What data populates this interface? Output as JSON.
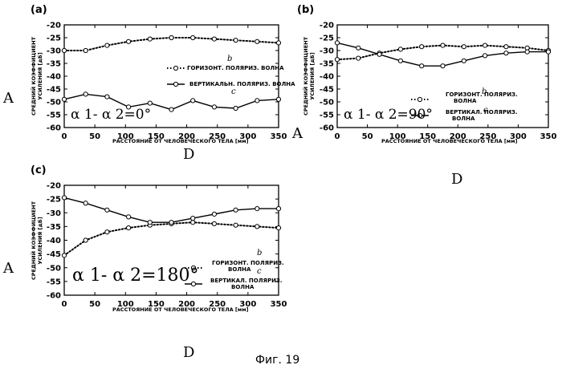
{
  "figure_caption": "Фиг. 19",
  "chart_data": [
    {
      "type": "line",
      "panel_label": "(a)",
      "annotation": "α 1- α 2=0°",
      "xlabel": "РАССТОЯНИЕ ОТ ЧЕЛОВЕЧЕСКОГО ТЕЛА [мм]",
      "ylabel": "СРЕДНИЙ КОЭФФИЦИЕНТ УСИЛЕНИЯ [дБ]",
      "xlim": [
        0,
        350
      ],
      "ylim": [
        -60,
        -20
      ],
      "x_ticks": [
        "0",
        "50",
        "100",
        "150",
        "200",
        "250",
        "300",
        "350"
      ],
      "y_ticks": [
        "-20",
        "-25",
        "-30",
        "-35",
        "-40",
        "-45",
        "-50",
        "-55",
        "-60"
      ],
      "x": [
        0,
        35,
        70,
        105,
        140,
        175,
        210,
        245,
        280,
        315,
        350
      ],
      "series": [
        {
          "name": "ГОРИЗОНТ. ПОЛЯРИЗ. ВОЛНА",
          "style": "dotted",
          "values": [
            -30,
            -30,
            -28,
            -26.5,
            -25.5,
            -25,
            -25,
            -25.5,
            -26,
            -26.5,
            -27
          ]
        },
        {
          "name": "ВЕРТИКАЛЬН. ПОЛЯРИЗ. ВОЛНА",
          "style": "solid",
          "values": [
            -49,
            -47,
            -48,
            -52,
            -50.5,
            -53,
            -49.5,
            -52,
            -52.5,
            -49.5,
            -49
          ]
        }
      ],
      "handwritten": {
        "A": "A",
        "D": "D",
        "b": "b",
        "c": "c"
      }
    },
    {
      "type": "line",
      "panel_label": "(b)",
      "annotation": "α 1- α 2=90°",
      "xlabel": "РАССТОЯНИЕ ОТ ЧЕЛОВЕЧЕСКОГО ТЕЛА [мм]",
      "ylabel": "СРЕДНИЙ КОЭФФИЦИЕНТ УСИЛЕНИЯ [дБ]",
      "xlim": [
        0,
        350
      ],
      "ylim": [
        -60,
        -20
      ],
      "x_ticks": [
        "0",
        "50",
        "100",
        "150",
        "200",
        "250",
        "300",
        "350"
      ],
      "y_ticks": [
        "-20",
        "-25",
        "-30",
        "-35",
        "-40",
        "-45",
        "-50",
        "-55",
        "-60"
      ],
      "x": [
        0,
        35,
        70,
        105,
        140,
        175,
        210,
        245,
        280,
        315,
        350
      ],
      "series": [
        {
          "name": "ГОРИЗОНТ. ПОЛЯРИЗ. ВОЛНА",
          "style": "dotted",
          "values": [
            -33.5,
            -33,
            -31,
            -29.5,
            -28.5,
            -28,
            -28.5,
            -28,
            -28.5,
            -29,
            -30
          ]
        },
        {
          "name": "ВЕРТИКАЛ. ПОЛЯРИЗ. ВОЛНА",
          "style": "solid",
          "values": [
            -27,
            -29,
            -31.5,
            -34,
            -36,
            -36,
            -34,
            -32,
            -31,
            -30.5,
            -30.5
          ]
        }
      ],
      "handwritten": {
        "A": "A",
        "D": "D",
        "b": "b",
        "c": "c"
      }
    },
    {
      "type": "line",
      "panel_label": "(c)",
      "annotation": "α 1- α 2=180°",
      "xlabel": "РАССТОЯНИЕ ОТ ЧЕЛОВЕЧЕСКОГО ТЕЛА [мм]",
      "ylabel": "СРЕДНИЙ КОЭФФИЦИЕНТ УСИЛЕНИЯ [дБ]",
      "xlim": [
        0,
        350
      ],
      "ylim": [
        -60,
        -20
      ],
      "x_ticks": [
        "0",
        "50",
        "100",
        "150",
        "200",
        "250",
        "300",
        "350"
      ],
      "y_ticks": [
        "-20",
        "-25",
        "-30",
        "-35",
        "-40",
        "-45",
        "-50",
        "-55",
        "-60"
      ],
      "x": [
        0,
        35,
        70,
        105,
        140,
        175,
        210,
        245,
        280,
        315,
        350
      ],
      "series": [
        {
          "name": "ГОРИЗОНТ. ПОЛЯРИЗ. ВОЛНА",
          "style": "dotted",
          "values": [
            -45.5,
            -40,
            -37,
            -35.5,
            -34.5,
            -34,
            -33.5,
            -34,
            -34.5,
            -35,
            -35.5
          ]
        },
        {
          "name": "ВЕРТИКАЛ. ПОЛЯРИЗ. ВОЛНА",
          "style": "solid",
          "values": [
            -24.5,
            -26.5,
            -29,
            -31.5,
            -33.5,
            -33.5,
            -32,
            -30.5,
            -29,
            -28.5,
            -28.5
          ]
        }
      ],
      "handwritten": {
        "A": "A",
        "D": "D",
        "b": "b",
        "c": "c"
      }
    }
  ]
}
